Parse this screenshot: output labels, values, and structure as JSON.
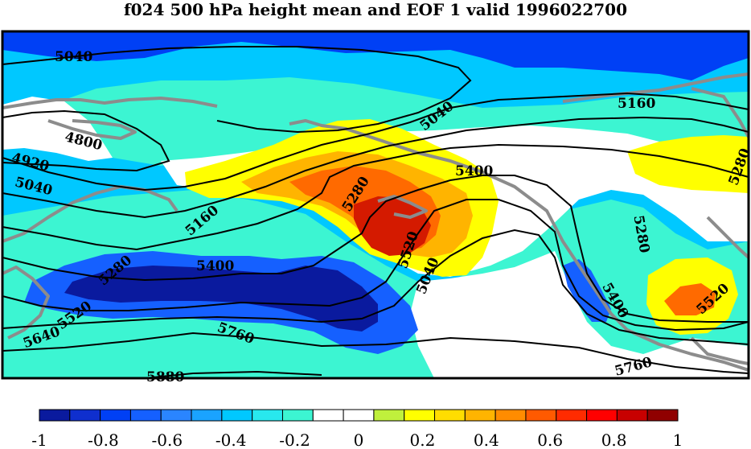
{
  "title": "f024 500 hPa height mean and EOF 1 valid 1996022700",
  "contour_labels": [
    {
      "id": "c1",
      "text": "5040"
    },
    {
      "id": "c2",
      "text": "5040"
    },
    {
      "id": "c3",
      "text": "4800"
    },
    {
      "id": "c4",
      "text": "5160"
    },
    {
      "id": "c5",
      "text": "4920"
    },
    {
      "id": "c6",
      "text": "5040"
    },
    {
      "id": "c7",
      "text": "5160"
    },
    {
      "id": "c8",
      "text": "5280"
    },
    {
      "id": "c9",
      "text": "5400"
    },
    {
      "id": "c10",
      "text": "5280"
    },
    {
      "id": "c11",
      "text": "5520"
    },
    {
      "id": "c12",
      "text": "5040"
    },
    {
      "id": "c13",
      "text": "5280"
    },
    {
      "id": "c14",
      "text": "5400"
    },
    {
      "id": "c15",
      "text": "5400"
    },
    {
      "id": "c16",
      "text": "5280"
    },
    {
      "id": "c17",
      "text": "5520"
    },
    {
      "id": "c18",
      "text": "5520"
    },
    {
      "id": "c19",
      "text": "5640"
    },
    {
      "id": "c20",
      "text": "5760"
    },
    {
      "id": "c21",
      "text": "5760"
    },
    {
      "id": "c22",
      "text": "5880"
    }
  ],
  "colorbar": {
    "colors": [
      "#0a1a9e",
      "#0f2fce",
      "#0040f5",
      "#1560ff",
      "#2a85ff",
      "#1aa3ff",
      "#00c8ff",
      "#28e8ee",
      "#3cf5d2",
      "#ffffff",
      "#ffffff",
      "#c0f03c",
      "#ffff00",
      "#ffdd00",
      "#ffb400",
      "#ff8c00",
      "#ff5a00",
      "#ff2b00",
      "#ff0000",
      "#c80000",
      "#900000"
    ],
    "tick_labels": [
      "-1",
      "-0.8",
      "-0.6",
      "-0.4",
      "-0.2",
      "0",
      "0.2",
      "0.4",
      "0.6",
      "0.8",
      "1"
    ]
  },
  "colors": {
    "blue_dark": "#0a1a9e",
    "blue": "#1560ff",
    "light_blue": "#00c8ff",
    "cyan": "#3cf5d2",
    "yellow": "#ffff00",
    "orange": "#ffb400",
    "orange_red": "#ff6a00",
    "red": "#d41a00",
    "coast": "#8c8c8c"
  }
}
